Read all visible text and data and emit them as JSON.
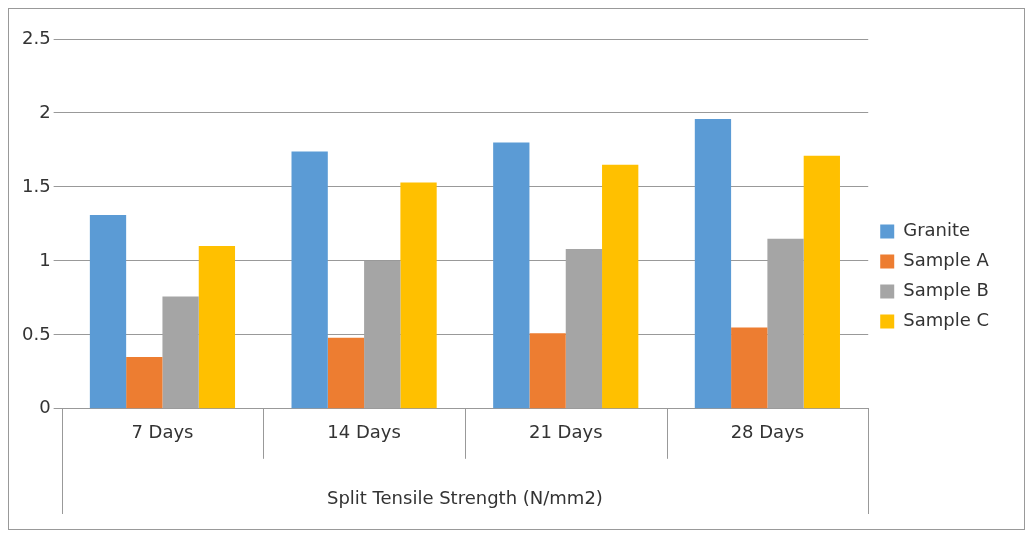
{
  "chart_data": {
    "type": "bar",
    "xlabel": "Split Tensile Strength (N/mm2)",
    "categories": [
      "7 Days",
      "14 Days",
      "21 Days",
      "28 Days"
    ],
    "series": [
      {
        "name": "Granite",
        "color": "#5b9bd5",
        "values": [
          1.31,
          1.74,
          1.8,
          1.96
        ]
      },
      {
        "name": "Sample A",
        "color": "#ed7d31",
        "values": [
          0.35,
          0.48,
          0.51,
          0.55
        ]
      },
      {
        "name": "Sample B",
        "color": "#a5a5a5",
        "values": [
          0.76,
          1.0,
          1.08,
          1.15
        ]
      },
      {
        "name": "Sample C",
        "color": "#ffc000",
        "values": [
          1.1,
          1.53,
          1.65,
          1.71
        ]
      }
    ],
    "ylim": [
      0,
      2.5
    ],
    "yticks": [
      0,
      0.5,
      1,
      1.5,
      2,
      2.5
    ],
    "grid": "y",
    "legend": "right"
  }
}
